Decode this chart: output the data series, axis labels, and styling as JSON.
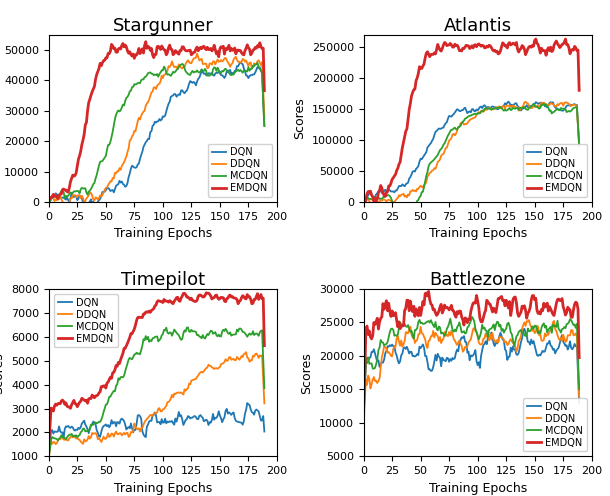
{
  "titles": [
    "Stargunner",
    "Atlantis",
    "Timepilot",
    "Battlezone"
  ],
  "xlabel": "Training Epochs",
  "ylabel": "Scores",
  "legend_labels": [
    "DQN",
    "DDQN",
    "MCDQN",
    "EMDQN"
  ],
  "colors": [
    "#1f77b4",
    "#ff7f0e",
    "#2ca02c",
    "#d62728"
  ],
  "n_epochs": 190,
  "figsize": [
    6.1,
    4.96
  ],
  "dpi": 100,
  "title_fontsize": 13,
  "axis_fontsize": 9,
  "tick_fontsize": 8,
  "legend_fontsize": 7,
  "sg_ylim": [
    0,
    55000
  ],
  "sg_yticks": [
    0,
    10000,
    20000,
    30000,
    40000,
    50000
  ],
  "atl_ylim": [
    0,
    270000
  ],
  "atl_yticks": [
    0,
    50000,
    100000,
    150000,
    200000,
    250000
  ],
  "tp_ylim": [
    1000,
    8000
  ],
  "tp_yticks": [
    1000,
    2000,
    3000,
    4000,
    5000,
    6000,
    7000,
    8000
  ],
  "bz_ylim": [
    5000,
    30000
  ],
  "bz_yticks": [
    5000,
    10000,
    15000,
    20000,
    25000,
    30000
  ],
  "xticks": [
    0,
    25,
    50,
    75,
    100,
    125,
    150,
    175,
    200
  ]
}
